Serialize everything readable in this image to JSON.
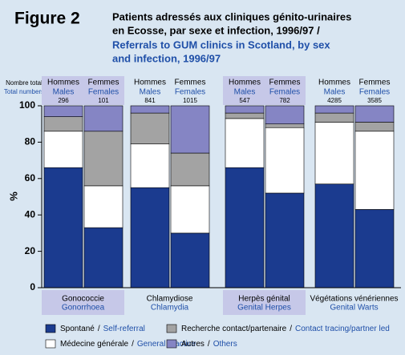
{
  "chart_data": {
    "type": "bar",
    "stacked": true,
    "figure_label": "Figure 2",
    "title_lines": [
      "Patients adressés aux cliniques génito-urinaires",
      "en Ecosse, par sexe et infection, 1996/97 /"
    ],
    "title_en_lines": [
      "Referrals to GUM clinics in Scotland, by sex",
      "and infection, 1996/97"
    ],
    "total_label": "Nombre total",
    "total_label_en": "Total numbers",
    "y_label": "%",
    "ylim": [
      0,
      100
    ],
    "yticks": [
      0,
      20,
      40,
      60,
      80,
      100
    ],
    "legend_separator": "/",
    "groups": [
      {
        "label": "Gonococcie",
        "label_en": "Gonorrhoea",
        "bars": [
          {
            "sex": "Hommes",
            "sex_en": "Males",
            "total": 296
          },
          {
            "sex": "Femmes",
            "sex_en": "Females",
            "total": 101
          }
        ]
      },
      {
        "label": "Chlamydiose",
        "label_en": "Chlamydia",
        "bars": [
          {
            "sex": "Hommes",
            "sex_en": "Males",
            "total": 841
          },
          {
            "sex": "Femmes",
            "sex_en": "Females",
            "total": 1015
          }
        ]
      },
      {
        "label": "Herpès génital",
        "label_en": "Genital Herpes",
        "bars": [
          {
            "sex": "Hommes",
            "sex_en": "Males",
            "total": 547
          },
          {
            "sex": "Femmes",
            "sex_en": "Females",
            "total": 782
          }
        ]
      },
      {
        "label": "Végétations vénériennes",
        "label_en": "Genital Warts",
        "bars": [
          {
            "sex": "Hommes",
            "sex_en": "Males",
            "total": 4285
          },
          {
            "sex": "Femmes",
            "sex_en": "Females",
            "total": 3585
          }
        ]
      }
    ],
    "series": [
      {
        "name": "Spontané",
        "name_en": "Self-referral",
        "color": "#1b3b8f",
        "values": [
          66,
          33,
          55,
          30,
          66,
          52,
          57,
          43
        ]
      },
      {
        "name": "Médecine générale",
        "name_en": "General practice",
        "color": "#ffffff",
        "values": [
          20,
          23,
          24,
          26,
          27,
          36,
          34,
          43
        ]
      },
      {
        "name": "Recherche contact/partenaire",
        "name_en": "Contact tracing/partner led",
        "color": "#a3a3a3",
        "values": [
          8,
          30,
          17,
          18,
          3,
          2,
          5,
          5
        ]
      },
      {
        "name": "Autres",
        "name_en": "Others",
        "color": "#8585c4",
        "values": [
          6,
          14,
          4,
          26,
          4,
          10,
          4,
          9
        ]
      }
    ]
  }
}
